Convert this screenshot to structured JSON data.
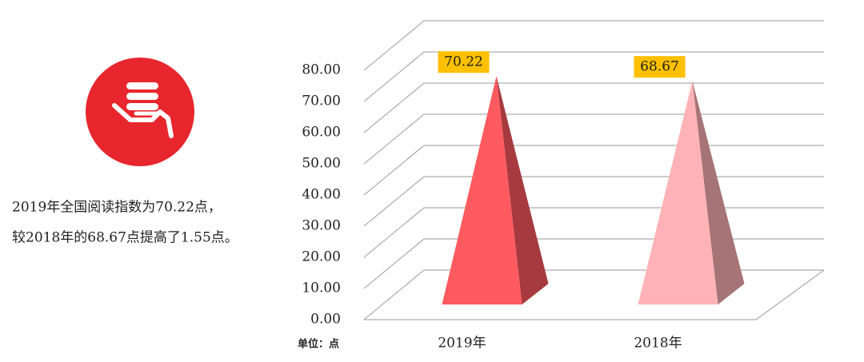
{
  "chart_data": {
    "type": "bar",
    "categories": [
      "2019年",
      "2018年"
    ],
    "series": [
      {
        "values": [
          70.22,
          68.67
        ],
        "colors": [
          "#ff5a5f",
          "#ffb3b6"
        ]
      }
    ],
    "ylim": [
      0,
      80
    ],
    "yticks": [
      {
        "value": 0,
        "label": "0.00"
      },
      {
        "value": 10,
        "label": "10.00"
      },
      {
        "value": 20,
        "label": "20.00"
      },
      {
        "value": 30,
        "label": "30.00"
      },
      {
        "value": 40,
        "label": "40.00"
      },
      {
        "value": 50,
        "label": "50.00"
      },
      {
        "value": 60,
        "label": "60.00"
      },
      {
        "value": 70,
        "label": "70.00"
      },
      {
        "value": 80,
        "label": "80.00"
      }
    ],
    "unit_label": "单位：点",
    "annotations": [
      "2019年全国阅读指数为70.22点，",
      "较2018年的68.67点提高了1.55点。"
    ],
    "label_box_color": "#ffc000",
    "grid": true
  }
}
